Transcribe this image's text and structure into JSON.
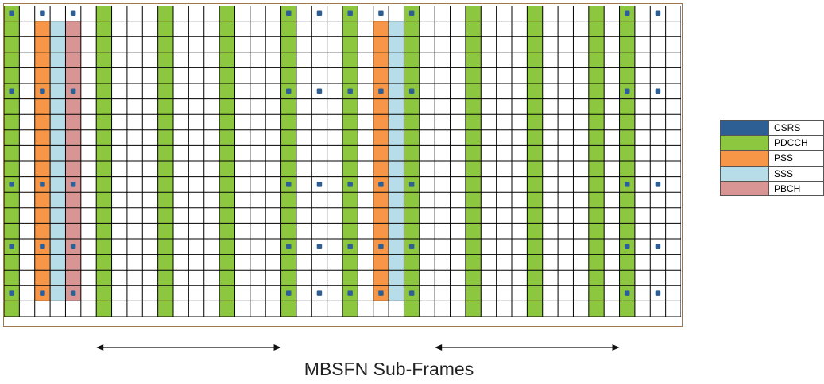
{
  "diagram": {
    "grid": {
      "columns": 44,
      "rows": 20
    },
    "colors": {
      "CSRS": "#2e5f94",
      "PDCCH": "#8dc63f",
      "PSS": "#f79646",
      "SSS": "#b7dde8",
      "PBCH": "#d99594",
      "grid_line": "#000000",
      "frame": "#a0774a",
      "empty": "#ffffff"
    },
    "column_types": {
      "PDCCH": [
        0,
        6,
        10,
        14,
        18,
        22,
        26,
        30,
        34,
        38,
        40
      ],
      "PSS": [
        2,
        24
      ],
      "SSS": [
        3,
        25
      ],
      "PBCH": [
        4
      ]
    },
    "channel_rows": {
      "PSS": [
        1,
        18
      ],
      "SSS": [
        1,
        18
      ],
      "PBCH": [
        1,
        18
      ]
    },
    "csrs": {
      "rows": [
        0,
        5,
        11,
        15,
        18
      ],
      "columns": [
        0,
        2,
        4,
        18,
        20,
        22,
        24,
        26,
        40,
        42
      ]
    },
    "legend": [
      {
        "label": "CSRS",
        "color_key": "CSRS"
      },
      {
        "label": "PDCCH",
        "color_key": "PDCCH"
      },
      {
        "label": "PSS",
        "color_key": "PSS"
      },
      {
        "label": "SSS",
        "color_key": "SSS"
      },
      {
        "label": "PBCH",
        "color_key": "PBCH"
      }
    ],
    "caption": "MBSFN Sub-Frames",
    "mbsfn_spans": [
      {
        "from_column": 6,
        "to_column": 18
      },
      {
        "from_column": 28,
        "to_column": 40
      }
    ]
  }
}
